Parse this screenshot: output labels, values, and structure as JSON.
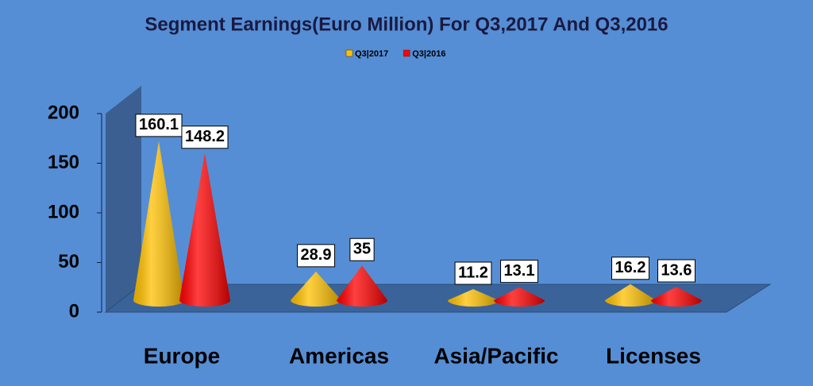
{
  "chart_data": {
    "type": "cone-bar",
    "title": "Segment Earnings(Euro Million) For Q3,2017 And Q3,2016",
    "categories": [
      "Europe",
      "Americas",
      "Asia/Pacific",
      "Licenses"
    ],
    "series": [
      {
        "name": "Q3|2017",
        "color": "#ffc000",
        "values": [
          160.1,
          28.9,
          11.2,
          16.2
        ]
      },
      {
        "name": "Q3|2016",
        "color": "#ff0000",
        "values": [
          148.2,
          35,
          13.1,
          13.6
        ]
      }
    ],
    "ylim": [
      0,
      200
    ],
    "yticks": [
      0,
      50,
      100,
      150,
      200
    ],
    "legend": "top",
    "background": "#558ed5"
  }
}
